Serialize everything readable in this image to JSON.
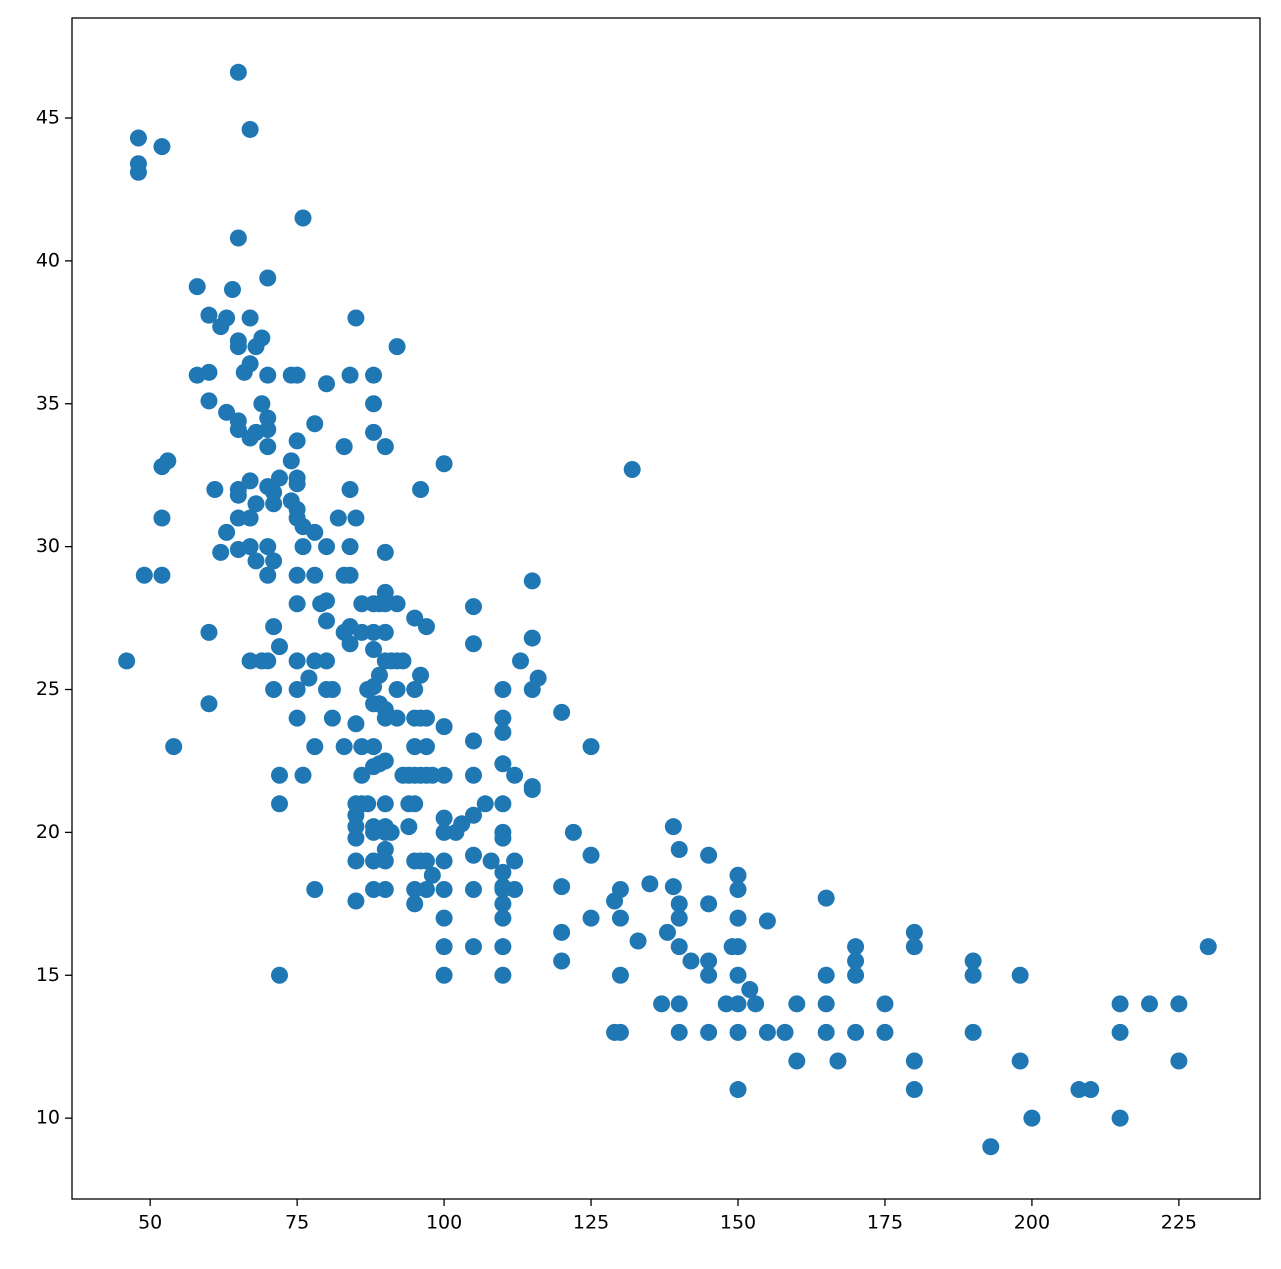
{
  "chart_data": {
    "type": "scatter",
    "color": "#1f77b4",
    "x": [
      46,
      48,
      48,
      48,
      49,
      52,
      52,
      52,
      52,
      53,
      54,
      58,
      58,
      60,
      60,
      60,
      60,
      60,
      61,
      62,
      62,
      63,
      63,
      63,
      64,
      65,
      65,
      65,
      65,
      65,
      65,
      65,
      65,
      65,
      65,
      66,
      67,
      67,
      67,
      67,
      67,
      67,
      67,
      67,
      68,
      68,
      68,
      68,
      69,
      69,
      69,
      70,
      70,
      70,
      70,
      70,
      70,
      70,
      70,
      70,
      71,
      71,
      71,
      71,
      71,
      72,
      72,
      72,
      72,
      72,
      74,
      74,
      74,
      75,
      75,
      75,
      75,
      75,
      75,
      75,
      75,
      75,
      75,
      75,
      76,
      76,
      76,
      76,
      77,
      78,
      78,
      78,
      78,
      78,
      78,
      79,
      80,
      80,
      80,
      80,
      80,
      80,
      81,
      81,
      82,
      83,
      83,
      83,
      83,
      84,
      84,
      84,
      84,
      84,
      84,
      85,
      85,
      85,
      85,
      85,
      85,
      85,
      85,
      85,
      86,
      86,
      86,
      86,
      86,
      87,
      87,
      88,
      88,
      88,
      88,
      88,
      88,
      88,
      88,
      88,
      88,
      88,
      88,
      88,
      88,
      89,
      89,
      89,
      89,
      90,
      90,
      90,
      90,
      90,
      90,
      90,
      90,
      90,
      90,
      90,
      90,
      90,
      90,
      90,
      91,
      91,
      92,
      92,
      92,
      92,
      92,
      93,
      93,
      94,
      94,
      94,
      95,
      95,
      95,
      95,
      95,
      95,
      95,
      95,
      95,
      96,
      96,
      96,
      96,
      96,
      97,
      97,
      97,
      97,
      97,
      97,
      98,
      98,
      100,
      100,
      100,
      100,
      100,
      100,
      100,
      100,
      100,
      100,
      102,
      103,
      105,
      105,
      105,
      105,
      105,
      105,
      105,
      105,
      107,
      108,
      110,
      110,
      110,
      110,
      110,
      110,
      110,
      110,
      110,
      110,
      110,
      110,
      110,
      110,
      112,
      112,
      112,
      113,
      115,
      115,
      115,
      115,
      115,
      116,
      120,
      120,
      120,
      120,
      122,
      125,
      125,
      125,
      129,
      129,
      130,
      130,
      130,
      130,
      132,
      133,
      135,
      137,
      138,
      139,
      139,
      140,
      140,
      140,
      140,
      140,
      140,
      142,
      145,
      145,
      145,
      145,
      145,
      148,
      149,
      150,
      150,
      150,
      150,
      150,
      150,
      150,
      150,
      152,
      153,
      155,
      155,
      158,
      160,
      160,
      165,
      165,
      165,
      165,
      167,
      170,
      170,
      170,
      170,
      175,
      175,
      180,
      180,
      180,
      180,
      190,
      190,
      190,
      193,
      198,
      198,
      200,
      208,
      210,
      215,
      215,
      215,
      220,
      225,
      225,
      230
    ],
    "values": [
      26,
      44.3,
      43.4,
      43.1,
      29,
      44,
      32.8,
      31,
      29,
      33,
      23,
      39.1,
      36,
      38.1,
      36.1,
      35.1,
      27,
      24.5,
      32,
      37.7,
      29.8,
      38,
      34.7,
      30.5,
      39,
      46.6,
      40.8,
      37.2,
      37,
      34.4,
      34.1,
      32,
      31.8,
      31,
      29.9,
      36.1,
      44.6,
      38,
      36.4,
      33.8,
      32.3,
      31,
      30,
      26,
      37,
      34,
      31.5,
      29.5,
      37.3,
      35,
      26,
      39.4,
      36,
      34.5,
      34.1,
      33.5,
      32.1,
      30,
      29,
      26,
      31.9,
      31.5,
      29.5,
      27.2,
      25,
      32.4,
      26.5,
      22,
      21,
      15,
      36,
      33,
      31.6,
      36,
      32.4,
      32.2,
      31.3,
      31,
      29,
      28,
      26,
      25,
      24,
      33.7,
      41.5,
      30,
      30.7,
      22,
      25.4,
      34.3,
      30.5,
      29,
      26,
      23,
      18,
      28,
      35.7,
      30,
      28.1,
      27.4,
      26,
      25,
      25,
      24,
      31,
      33.5,
      29,
      27,
      23,
      36,
      32,
      30,
      29,
      27.2,
      26.6,
      38,
      31,
      23.8,
      21,
      20.6,
      20.2,
      19.8,
      19,
      17.6,
      28,
      27,
      23,
      22,
      21,
      25,
      21,
      36,
      35,
      34,
      28,
      27,
      26.4,
      25.1,
      24.5,
      23,
      22.3,
      20.2,
      20,
      19,
      18,
      28,
      25.5,
      24.5,
      22.4,
      29.8,
      28.4,
      28,
      27,
      26,
      24.3,
      24,
      22.5,
      21,
      20.2,
      20,
      19.4,
      19,
      18,
      33.5,
      26,
      20,
      37,
      28,
      25,
      24,
      26,
      26,
      22,
      22,
      20.2,
      21,
      27.5,
      25,
      24,
      23,
      22,
      21,
      19,
      18,
      17.5,
      32,
      25.5,
      24,
      22,
      19,
      27.2,
      24,
      23,
      22,
      19,
      18,
      18.5,
      22,
      32.9,
      23.7,
      22,
      20.5,
      20,
      19,
      18,
      17,
      16,
      15,
      20,
      20.3,
      27.9,
      26.6,
      23.2,
      22,
      20.6,
      19.2,
      18,
      16,
      21,
      19,
      25,
      24,
      23.5,
      22.4,
      21,
      20,
      19.8,
      18.6,
      18.1,
      18,
      17.5,
      17,
      16,
      15,
      22,
      19,
      18,
      26,
      28.8,
      26.8,
      25,
      21.6,
      21.5,
      25.4,
      24.2,
      18.1,
      16.5,
      15.5,
      20,
      23,
      19.2,
      17,
      17.6,
      13,
      18,
      17,
      15,
      13,
      32.7,
      16.2,
      18.2,
      14,
      16.5,
      20.2,
      18.1,
      19.4,
      17.5,
      17,
      16,
      14,
      13,
      15.5,
      19.2,
      17.5,
      15.5,
      15,
      13,
      14,
      16,
      18.5,
      18,
      17,
      16,
      15,
      14,
      13,
      11,
      14.5,
      14,
      16.9,
      13,
      13,
      14,
      12,
      17.7,
      15,
      14,
      13,
      12,
      16,
      15.5,
      15,
      13,
      14,
      13,
      16.5,
      16,
      12,
      11,
      15.5,
      15,
      13,
      9,
      15,
      12,
      10,
      11,
      11,
      14,
      13,
      10,
      14,
      14,
      12,
      16
    ],
    "xlim": [
      36.7,
      238.8
    ],
    "ylim": [
      7.17,
      48.5
    ],
    "xticks": [
      50,
      75,
      100,
      125,
      150,
      175,
      200,
      225
    ],
    "yticks": [
      10,
      15,
      20,
      25,
      30,
      35,
      40,
      45
    ]
  }
}
